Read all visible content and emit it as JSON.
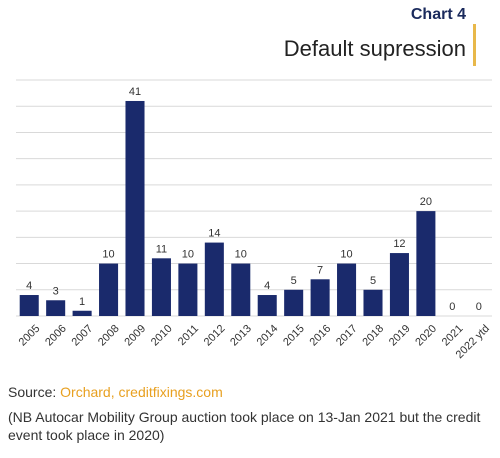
{
  "header": {
    "chart_number": "Chart 4",
    "title": "Default supression"
  },
  "source": {
    "prefix": "Source: ",
    "value": "Orchard, creditfixings.com"
  },
  "note": "(NB Autocar Mobility Group auction took place on 13-Jan 2021 but the credit event took place in 2020)",
  "colors": {
    "bar": "#1a2a6c",
    "grid": "#d9d9d9",
    "accent": "#e8b84a",
    "source_highlight": "#e8a020"
  },
  "chart_data": {
    "type": "bar",
    "title": "Default supression",
    "xlabel": "",
    "ylabel": "",
    "categories": [
      "2005",
      "2006",
      "2007",
      "2008",
      "2009",
      "2010",
      "2011",
      "2012",
      "2013",
      "2014",
      "2015",
      "2016",
      "2017",
      "2018",
      "2019",
      "2020",
      "2021",
      "2022 ytd"
    ],
    "values": [
      4,
      3,
      1,
      10,
      41,
      11,
      10,
      14,
      10,
      4,
      5,
      7,
      10,
      5,
      12,
      20,
      0,
      0
    ],
    "ylim": [
      0,
      45
    ],
    "grid": true,
    "data_labels": true
  }
}
